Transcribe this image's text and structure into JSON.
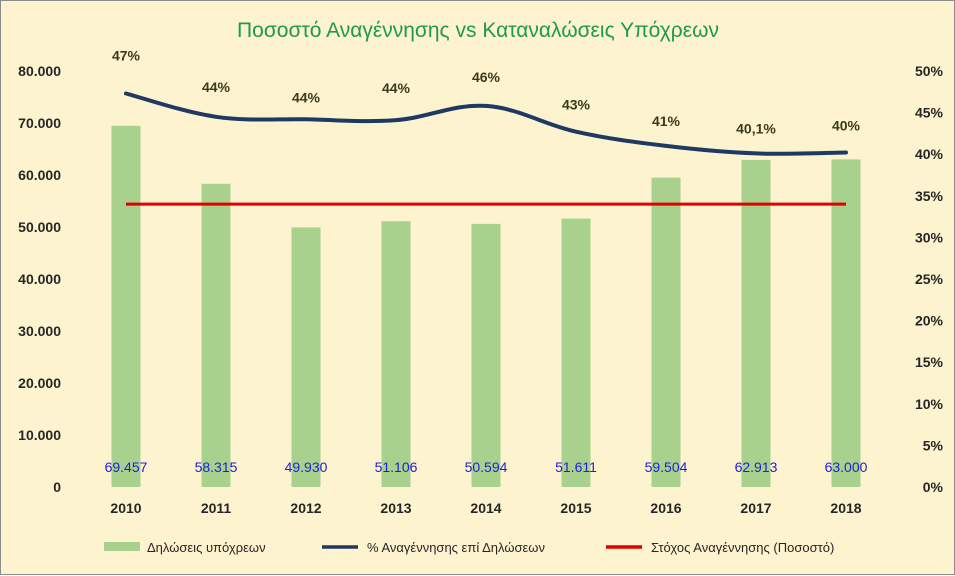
{
  "chart_data": {
    "type": "bar",
    "title": "Ποσοστό Αναγέννησης vs Καταναλώσεις Υπόχρεων",
    "categories": [
      "2010",
      "2011",
      "2012",
      "2013",
      "2014",
      "2015",
      "2016",
      "2017",
      "2018"
    ],
    "series": [
      {
        "name": "Δηλώσεις υπόχρεων",
        "type": "bar",
        "axis": "left",
        "color": "#a9d18e",
        "values": [
          69457,
          58315,
          49930,
          51106,
          50594,
          51611,
          59504,
          62913,
          63000
        ],
        "data_labels": [
          "69.457",
          "58.315",
          "49.930",
          "51.106",
          "50.594",
          "51.611",
          "59.504",
          "62.913",
          "63.000"
        ]
      },
      {
        "name": "% Αναγέννησης επί Δηλώσεων",
        "type": "line",
        "axis": "right",
        "color": "#1f3864",
        "values": [
          47.3,
          44.5,
          44.2,
          44.1,
          45.8,
          42.7,
          41.0,
          40.1,
          40.2
        ],
        "data_labels": [
          "47%",
          "44%",
          "44%",
          "44%",
          "46%",
          "43%",
          "41%",
          "40,1%",
          "40%"
        ]
      },
      {
        "name": "Στόχος Αναγέννησης (Ποσοστό)",
        "type": "line",
        "axis": "right",
        "color": "#e00000",
        "values": [
          34,
          34,
          34,
          34,
          34,
          34,
          34,
          34,
          34
        ]
      }
    ],
    "y_left": {
      "range": [
        0,
        80000
      ],
      "ticks": [
        0,
        10000,
        20000,
        30000,
        40000,
        50000,
        60000,
        70000,
        80000
      ],
      "tick_labels": [
        "0",
        "10.000",
        "20.000",
        "30.000",
        "40.000",
        "50.000",
        "60.000",
        "70.000",
        "80.000"
      ]
    },
    "y_right": {
      "range": [
        0,
        50
      ],
      "ticks": [
        0,
        5,
        10,
        15,
        20,
        25,
        30,
        35,
        40,
        45,
        50
      ],
      "tick_labels": [
        "0%",
        "5%",
        "10%",
        "15%",
        "20%",
        "25%",
        "30%",
        "35%",
        "40%",
        "45%",
        "50%"
      ]
    },
    "grid": false,
    "legend_position": "bottom",
    "background_color": "#fdf3cf"
  }
}
